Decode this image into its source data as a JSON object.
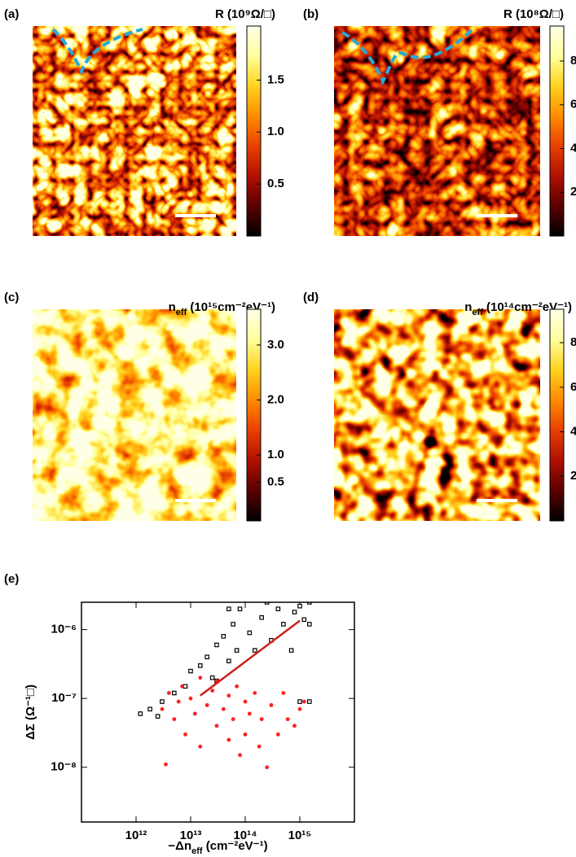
{
  "chart_data": [
    {
      "type": "heatmap",
      "panel": "(a)",
      "colorbar_label": [
        {
          "text": "R (10⁹Ω/□)"
        }
      ],
      "colormap": [
        "#000000",
        "#5a0000",
        "#b01000",
        "#e84000",
        "#ff8c00",
        "#ffd21e",
        "#ffff9c",
        "#ffffe8"
      ],
      "clim": [
        0,
        2.02
      ],
      "cticks": [
        0.5,
        {
          "value": 1,
          "label": "1.0"
        },
        1.5
      ]
    },
    {
      "type": "heatmap",
      "panel": "(b)",
      "colorbar_label": [
        {
          "text": "R (10⁸Ω/□)"
        }
      ],
      "colormap": [
        "#000000",
        "#5a0000",
        "#b01000",
        "#e84000",
        "#ff8c00",
        "#ffd21e",
        "#ffff9c",
        "#ffffe8"
      ],
      "clim": [
        0,
        9.6
      ],
      "cticks": [
        2,
        4,
        6,
        8
      ]
    },
    {
      "type": "heatmap",
      "panel": "(c)",
      "colorbar_label": [
        {
          "text": "n"
        },
        {
          "text": "eff",
          "subscript": true
        },
        {
          "text": " (10¹⁵cm⁻²eV⁻¹)"
        }
      ],
      "colormap": [
        "#000000",
        "#5a0000",
        "#b01000",
        "#e84000",
        "#ff8c00",
        "#ffd21e",
        "#ffff9c",
        "#ffffe8"
      ],
      "clim": [
        -0.2,
        3.65
      ],
      "cticks": [
        0.5,
        {
          "value": 1,
          "label": "1.0"
        },
        {
          "value": 2,
          "label": "2.0"
        },
        {
          "value": 3,
          "label": "3.0"
        }
      ]
    },
    {
      "type": "heatmap",
      "panel": "(d)",
      "colorbar_label": [
        {
          "text": "n"
        },
        {
          "text": "eff",
          "subscript": true
        },
        {
          "text": " (10¹⁴cm⁻²eV⁻¹)"
        }
      ],
      "colormap": [
        "#000000",
        "#5a0000",
        "#b01000",
        "#e84000",
        "#ff8c00",
        "#ffd21e",
        "#ffff9c",
        "#ffffe8"
      ],
      "clim": [
        0,
        9.5
      ],
      "cticks": [
        2,
        4,
        6,
        8
      ]
    },
    {
      "type": "scatter",
      "panel": "(e)",
      "log_x": true,
      "log_y": true,
      "ylabel": "ΔΣ (Ω⁻¹□)",
      "xlabel": [
        {
          "text": "−Δn"
        },
        {
          "text": "eff",
          "subscript": true
        },
        {
          "text": " (cm⁻²eV⁻¹)"
        }
      ],
      "xlim": [
        100000000000.0,
        1e+16
      ],
      "ylim": [
        1.6e-09,
        2.5e-06
      ],
      "xticks": [
        {
          "value": 1000000000000.0,
          "label": "10¹²"
        },
        {
          "value": 10000000000000.0,
          "label": "10¹³"
        },
        {
          "value": 100000000000000.0,
          "label": "10¹⁴"
        },
        {
          "value": 1000000000000000.0,
          "label": "10¹⁵"
        }
      ],
      "yticks": [
        {
          "value": 1e-08,
          "label": "10⁻⁸"
        },
        {
          "value": 1e-07,
          "label": "10⁻⁷"
        },
        {
          "value": 1e-06,
          "label": "10⁻⁶"
        }
      ],
      "series": [
        {
          "color": "#000000",
          "marker": "square",
          "x": [
            1200000000000.0,
            1800000000000.0,
            2500000000000.0,
            3000000000000.0,
            5000000000000.0,
            8000000000000.0,
            10000000000000.0,
            15000000000000.0,
            20000000000000.0,
            25000000000000.0,
            30000000000000.0,
            40000000000000.0,
            50000000000000.0,
            60000000000000.0,
            70000000000000.0,
            80000000000000.0,
            100000000000000.0,
            120000000000000.0,
            150000000000000.0,
            200000000000000.0,
            250000000000000.0,
            300000000000000.0,
            400000000000000.0,
            500000000000000.0,
            600000000000000.0,
            800000000000000.0,
            1000000000000000.0,
            1200000000000000.0,
            1500000000000000.0,
            1500000000000000.0,
            700000000000000.0,
            1000000000000000.0,
            1500000000000000.0,
            30000000000000.0,
            150000000000000.0,
            50000000000000.0
          ],
          "values": [
            6e-08,
            7e-08,
            5.5e-08,
            9e-08,
            1.2e-07,
            1.5e-07,
            2.5e-07,
            3e-07,
            4e-07,
            2e-07,
            6e-07,
            8e-07,
            3.5e-07,
            1.2e-06,
            5e-07,
            2e-06,
            2.8e-06,
            9e-07,
            3e-06,
            1.5e-06,
            2.5e-06,
            7e-07,
            2e-06,
            1.2e-06,
            3e-06,
            1.8e-06,
            2.2e-06,
            1.4e-06,
            2.5e-06,
            1.2e-06,
            5e-07,
            9e-08,
            9e-08,
            1.8e-07,
            5e-07,
            2e-06
          ]
        },
        {
          "color": "#ff2020",
          "marker": "circle",
          "x": [
            3000000000000.0,
            4000000000000.0,
            5000000000000.0,
            6000000000000.0,
            7000000000000.0,
            8000000000000.0,
            10000000000000.0,
            12000000000000.0,
            15000000000000.0,
            15000000000000.0,
            20000000000000.0,
            25000000000000.0,
            30000000000000.0,
            30000000000000.0,
            40000000000000.0,
            50000000000000.0,
            50000000000000.0,
            60000000000000.0,
            70000000000000.0,
            80000000000000.0,
            100000000000000.0,
            100000000000000.0,
            120000000000000.0,
            150000000000000.0,
            180000000000000.0,
            200000000000000.0,
            250000000000000.0,
            300000000000000.0,
            400000000000000.0,
            500000000000000.0,
            600000000000000.0,
            800000000000000.0,
            1000000000000000.0,
            1200000000000000.0,
            3500000000000.0
          ],
          "values": [
            7e-08,
            1.2e-07,
            5e-08,
            9e-08,
            1.5e-07,
            3e-08,
            1e-07,
            6e-08,
            2e-07,
            2e-08,
            8e-08,
            1.3e-07,
            4e-08,
            1.8e-07,
            7e-08,
            1.1e-07,
            2.5e-08,
            5e-08,
            1.5e-07,
            1.5e-08,
            9e-08,
            3e-08,
            6e-08,
            1.2e-07,
            2e-08,
            5e-08,
            1e-08,
            8e-08,
            3e-08,
            1.2e-07,
            5e-08,
            4e-08,
            7e-08,
            9e-08,
            1.1e-08
          ]
        }
      ],
      "fit": {
        "color": "#cc2222",
        "x": [
          15000000000000.0,
          1000000000000000.0
        ],
        "values": [
          1.1e-07,
          1.35e-06
        ]
      }
    }
  ]
}
